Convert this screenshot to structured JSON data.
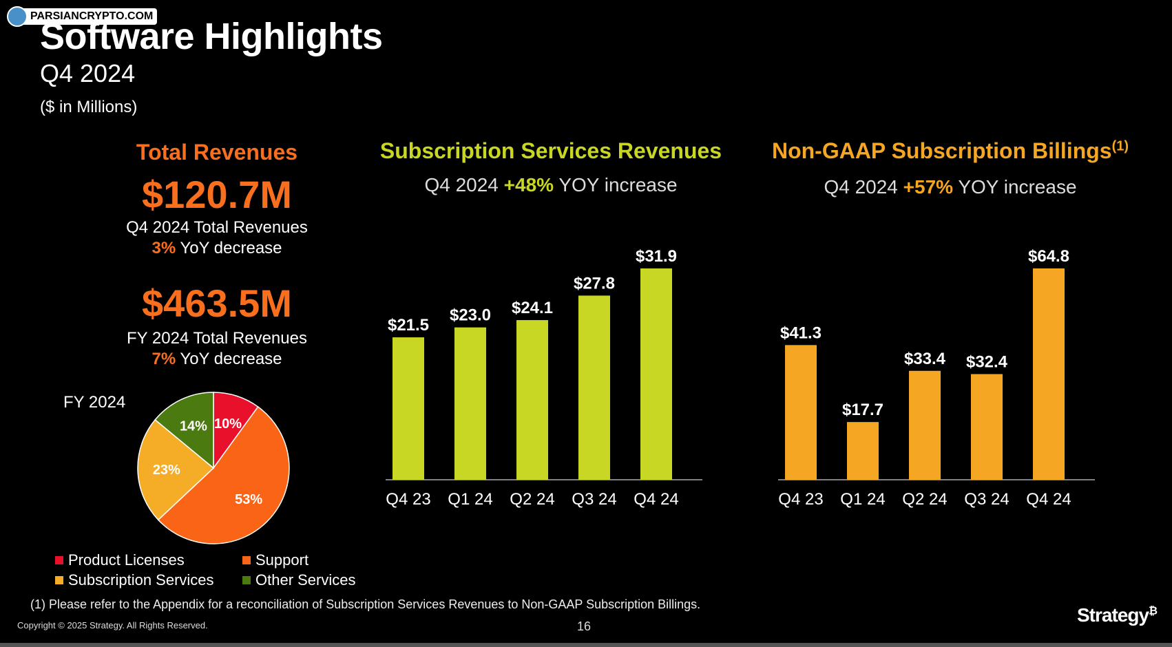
{
  "watermark": {
    "text": "PARSIANCRYPTO.COM"
  },
  "header": {
    "title": "Software Highlights",
    "subtitle": "Q4 2024",
    "units": "($ in Millions)"
  },
  "total_revenues": {
    "title": "Total Revenues",
    "q4_amount": "$120.7M",
    "q4_label": "Q4 2024 Total Revenues",
    "q4_change_pct": "3%",
    "q4_change_text": " YoY decrease",
    "fy_amount": "$463.5M",
    "fy_label": "FY 2024 Total Revenues",
    "fy_change_pct": "7%",
    "fy_change_text": " YoY decrease"
  },
  "pie_label": "FY 2024",
  "chart1_header": {
    "title": "Subscription Services Revenues",
    "sub_prefix": "Q4 2024 ",
    "sub_pct": "+48%",
    "sub_suffix": " YOY increase"
  },
  "chart2_header": {
    "title": "Non-GAAP Subscription Billings",
    "title_sup": "(1)",
    "sub_prefix": "Q4 2024 ",
    "sub_pct": "+57%",
    "sub_suffix": " YOY increase"
  },
  "chart_data": [
    {
      "type": "pie",
      "title": "FY 2024",
      "categories": [
        "Product Licenses",
        "Support",
        "Subscription Services",
        "Other Services"
      ],
      "values": [
        10,
        53,
        23,
        14
      ],
      "labels": [
        "10%",
        "53%",
        "23%",
        "14%"
      ],
      "colors": [
        "#e8102a",
        "#fa6416",
        "#f5ad28",
        "#4a7a10"
      ]
    },
    {
      "type": "bar",
      "title": "Subscription Services Revenues",
      "categories": [
        "Q4 23",
        "Q1 24",
        "Q2 24",
        "Q3 24",
        "Q4 24"
      ],
      "values": [
        21.5,
        23.0,
        24.1,
        27.8,
        31.9
      ],
      "labels": [
        "$21.5",
        "$23.0",
        "$24.1",
        "$27.8",
        "$31.9"
      ],
      "ylim": [
        0,
        31.9
      ],
      "color": "#c8d723"
    },
    {
      "type": "bar",
      "title": "Non-GAAP Subscription Billings",
      "categories": [
        "Q4 23",
        "Q1 24",
        "Q2 24",
        "Q3 24",
        "Q4 24"
      ],
      "values": [
        41.3,
        17.7,
        33.4,
        32.4,
        64.8
      ],
      "labels": [
        "$41.3",
        "$17.7",
        "$33.4",
        "$32.4",
        "$64.8"
      ],
      "ylim": [
        0,
        64.8
      ],
      "color": "#f5a623"
    }
  ],
  "footer": {
    "footnote": "(1) Please refer to the Appendix for a reconciliation of Subscription Services Revenues to Non-GAAP Subscription Billings.",
    "copyright": "Copyright © 2025 Strategy. All Rights Reserved.",
    "page_number": "16",
    "logo_text": "Strategy",
    "logo_mark": "₿"
  }
}
